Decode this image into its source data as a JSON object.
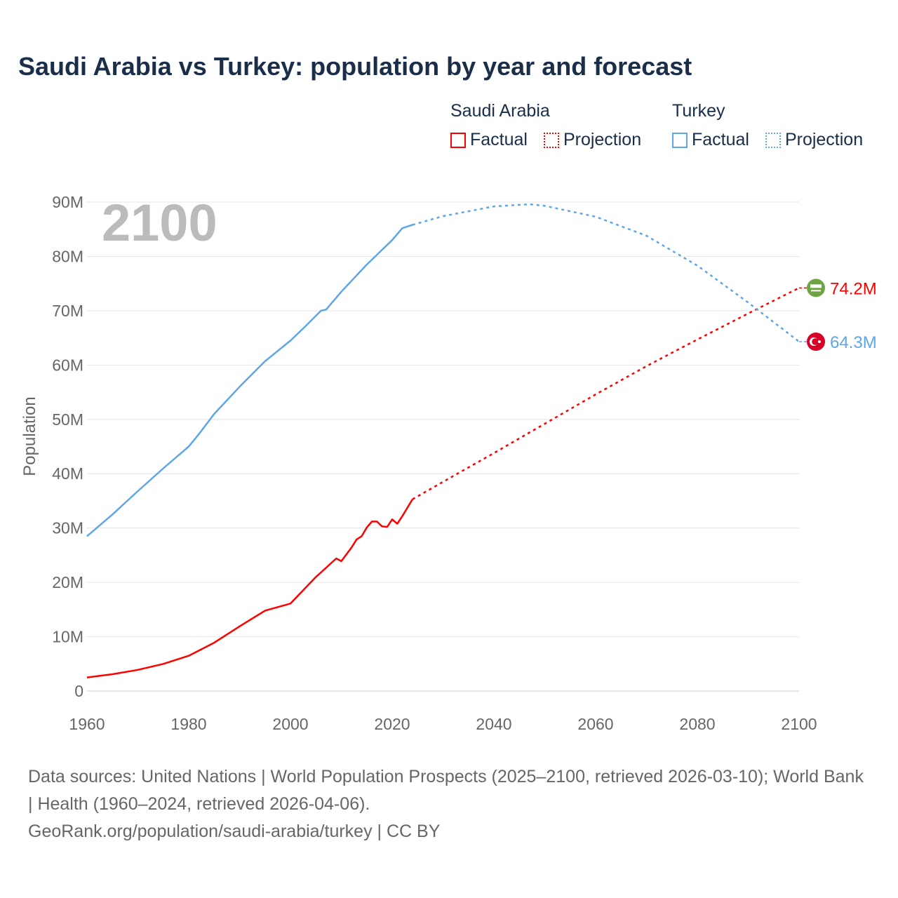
{
  "title": "Saudi Arabia vs Turkey: population by year and forecast",
  "legend": {
    "groups": [
      {
        "name": "Saudi Arabia",
        "color": "#ff0000",
        "items": [
          "Factual",
          "Projection"
        ]
      },
      {
        "name": "Turkey",
        "color": "#5ea6e8",
        "items": [
          "Factual",
          "Projection"
        ]
      }
    ]
  },
  "footer": {
    "sources": "Data sources: United Nations | World Population Prospects (2025–2100, retrieved 2026-03-10); World Bank | Health (1960–2024, retrieved 2026-04-06).",
    "credit": "GeoRank.org/population/saudi-arabia/turkey | CC BY"
  },
  "chart_data": {
    "type": "line",
    "title": "Saudi Arabia vs Turkey: population by year and forecast",
    "year_label": "2100",
    "xlabel": "",
    "ylabel": "Population",
    "xlim": [
      1960,
      2100
    ],
    "ylim": [
      0,
      90
    ],
    "x_ticks": [
      "1960",
      "1980",
      "2000",
      "2020",
      "2040",
      "2060",
      "2080",
      "2100"
    ],
    "y_ticks": [
      {
        "v": 0,
        "label": "0"
      },
      {
        "v": 10,
        "label": "10M"
      },
      {
        "v": 20,
        "label": "20M"
      },
      {
        "v": 30,
        "label": "30M"
      },
      {
        "v": 40,
        "label": "40M"
      },
      {
        "v": 50,
        "label": "50M"
      },
      {
        "v": 60,
        "label": "60M"
      },
      {
        "v": 70,
        "label": "70M"
      },
      {
        "v": 80,
        "label": "80M"
      },
      {
        "v": 90,
        "label": "90M"
      }
    ],
    "grid": true,
    "unit": "millions",
    "series": [
      {
        "name": "Saudi Arabia",
        "color": "#ff0000",
        "end_label": "74.2M",
        "flag": "saudi-arabia-flag",
        "factual": [
          [
            1960,
            2.5
          ],
          [
            1965,
            3.1
          ],
          [
            1970,
            3.9
          ],
          [
            1975,
            5.0
          ],
          [
            1980,
            6.5
          ],
          [
            1985,
            8.9
          ],
          [
            1990,
            11.9
          ],
          [
            1995,
            14.8
          ],
          [
            2000,
            16.1
          ],
          [
            2005,
            21.0
          ],
          [
            2009,
            24.4
          ],
          [
            2010,
            23.9
          ],
          [
            2012,
            26.4
          ],
          [
            2013,
            27.9
          ],
          [
            2014,
            28.5
          ],
          [
            2015,
            30.1
          ],
          [
            2016,
            31.2
          ],
          [
            2017,
            31.2
          ],
          [
            2018,
            30.3
          ],
          [
            2019,
            30.2
          ],
          [
            2020,
            31.6
          ],
          [
            2021,
            30.8
          ],
          [
            2022,
            32.2
          ],
          [
            2024,
            35.3
          ]
        ],
        "projection": [
          [
            2024,
            35.3
          ],
          [
            2030,
            38.5
          ],
          [
            2040,
            43.8
          ],
          [
            2050,
            49.2
          ],
          [
            2060,
            54.6
          ],
          [
            2070,
            59.8
          ],
          [
            2080,
            64.7
          ],
          [
            2090,
            69.5
          ],
          [
            2100,
            74.2
          ]
        ]
      },
      {
        "name": "Turkey",
        "color": "#5ea6e8",
        "end_label": "64.3M",
        "flag": "turkey-flag",
        "factual": [
          [
            1960,
            28.5
          ],
          [
            1965,
            32.5
          ],
          [
            1970,
            36.8
          ],
          [
            1975,
            41.0
          ],
          [
            1980,
            45.0
          ],
          [
            1982,
            47.3
          ],
          [
            1985,
            51.0
          ],
          [
            1990,
            56.0
          ],
          [
            1995,
            60.7
          ],
          [
            2000,
            64.5
          ],
          [
            2003,
            67.2
          ],
          [
            2006,
            70.0
          ],
          [
            2007,
            70.2
          ],
          [
            2010,
            73.5
          ],
          [
            2015,
            78.5
          ],
          [
            2020,
            83.0
          ],
          [
            2022,
            85.2
          ],
          [
            2024,
            85.8
          ]
        ],
        "projection": [
          [
            2024,
            85.8
          ],
          [
            2030,
            87.4
          ],
          [
            2040,
            89.2
          ],
          [
            2047,
            89.6
          ],
          [
            2050,
            89.3
          ],
          [
            2060,
            87.3
          ],
          [
            2070,
            83.8
          ],
          [
            2080,
            78.3
          ],
          [
            2090,
            71.5
          ],
          [
            2100,
            64.3
          ]
        ]
      }
    ]
  }
}
